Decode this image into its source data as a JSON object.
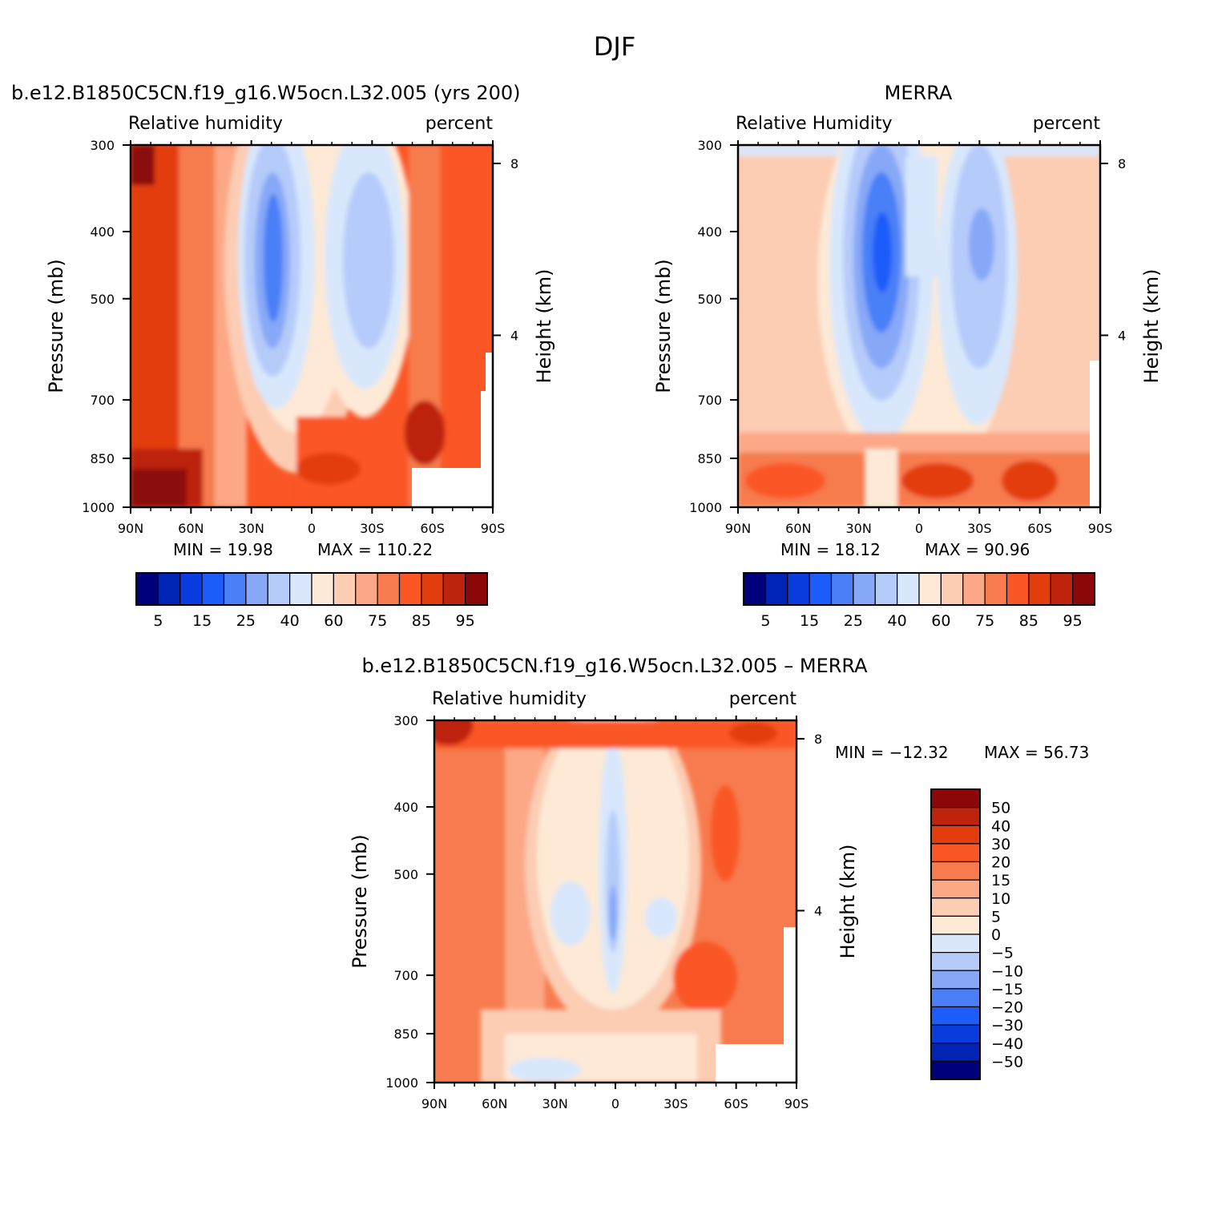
{
  "page_title": "DJF",
  "palettes": {
    "abs": [
      "#00007d",
      "#0024b5",
      "#0a3de0",
      "#1b5cfa",
      "#4a7ff7",
      "#87a8f7",
      "#b5cbfa",
      "#d8e7fc",
      "#fde9d6",
      "#fcccb3",
      "#fca785",
      "#f77b4e",
      "#fa5626",
      "#e33c0d",
      "#bd230d",
      "#8c0808"
    ],
    "diff": [
      "#00007d",
      "#0024b5",
      "#0a3de0",
      "#1b5cfa",
      "#4a7ff7",
      "#87a8f7",
      "#b5cbfa",
      "#d8e7fc",
      "#fde9d6",
      "#fcccb3",
      "#fca785",
      "#f77b4e",
      "#fa5626",
      "#e33c0d",
      "#bd230d",
      "#8c0808"
    ]
  },
  "chart_data": [
    {
      "id": "model",
      "type": "heatmap",
      "title": "b.e12.B1850C5CN.f19_g16.W5ocn.L32.005 (yrs 200)",
      "left_subtitle": "Relative humidity",
      "right_subtitle": "percent",
      "ylabel": "Pressure (mb)",
      "ylabel_right": "Height (km)",
      "x_ticks": [
        "90N",
        "60N",
        "30N",
        "0",
        "30S",
        "60S",
        "90S"
      ],
      "y_ticks": [
        "300",
        "400",
        "500",
        "700",
        "850",
        "1000"
      ],
      "y_right_ticks": [
        "8",
        "4"
      ],
      "ylim": [
        1000,
        300
      ],
      "min_label": "MIN = 19.98",
      "max_label": "MAX = 110.22",
      "min": 19.98,
      "max": 110.22,
      "colorbar": {
        "orientation": "horizontal",
        "labels": [
          "5",
          "15",
          "25",
          "40",
          "60",
          "75",
          "85",
          "95"
        ]
      },
      "levels": [
        5,
        10,
        15,
        20,
        25,
        30,
        40,
        50,
        60,
        70,
        75,
        80,
        85,
        90,
        95
      ]
    },
    {
      "id": "obs",
      "type": "heatmap",
      "title": "MERRA",
      "left_subtitle": "Relative Humidity",
      "right_subtitle": "percent",
      "ylabel": "Pressure (mb)",
      "ylabel_right": "Height (km)",
      "x_ticks": [
        "90N",
        "60N",
        "30N",
        "0",
        "30S",
        "60S",
        "90S"
      ],
      "y_ticks": [
        "300",
        "400",
        "500",
        "700",
        "850",
        "1000"
      ],
      "y_right_ticks": [
        "8",
        "4"
      ],
      "ylim": [
        1000,
        300
      ],
      "min_label": "MIN = 18.12",
      "max_label": "MAX = 90.96",
      "min": 18.12,
      "max": 90.96,
      "colorbar": {
        "orientation": "horizontal",
        "labels": [
          "5",
          "15",
          "25",
          "40",
          "60",
          "75",
          "85",
          "95"
        ]
      },
      "levels": [
        5,
        10,
        15,
        20,
        25,
        30,
        40,
        50,
        60,
        70,
        75,
        80,
        85,
        90,
        95
      ]
    },
    {
      "id": "diff",
      "type": "heatmap",
      "title": "b.e12.B1850C5CN.f19_g16.W5ocn.L32.005 – MERRA",
      "left_subtitle": "Relative humidity",
      "right_subtitle": "percent",
      "ylabel": "Pressure (mb)",
      "ylabel_right": "Height (km)",
      "x_ticks": [
        "90N",
        "60N",
        "30N",
        "0",
        "30S",
        "60S",
        "90S"
      ],
      "y_ticks": [
        "300",
        "400",
        "500",
        "700",
        "850",
        "1000"
      ],
      "y_right_ticks": [
        "8",
        "4"
      ],
      "ylim": [
        1000,
        300
      ],
      "min_label": "MIN = −12.32",
      "max_label": "MAX = 56.73",
      "min": -12.32,
      "max": 56.73,
      "colorbar": {
        "orientation": "vertical",
        "labels": [
          "50",
          "40",
          "30",
          "20",
          "15",
          "10",
          "5",
          "0",
          "−5",
          "−10",
          "−15",
          "−20",
          "−30",
          "−40",
          "−50"
        ]
      },
      "levels": [
        -50,
        -40,
        -30,
        -20,
        -15,
        -10,
        -5,
        0,
        5,
        10,
        15,
        20,
        30,
        40,
        50
      ]
    }
  ]
}
